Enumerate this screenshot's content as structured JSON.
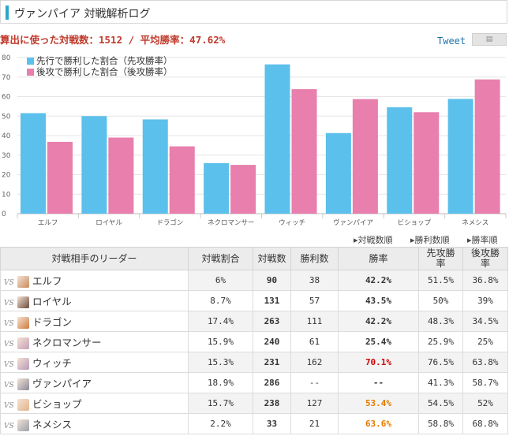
{
  "header": {
    "title": "ヴァンパイア 対戦解析ログ"
  },
  "stats": {
    "text": "算出に使った対戦数：1512 / 平均勝率：47.62%"
  },
  "tweet": {
    "label": "Tweet",
    "button_icon": "share-icon"
  },
  "chart_data": {
    "type": "bar",
    "categories": [
      "エルフ",
      "ロイヤル",
      "ドラゴン",
      "ネクロマンサー",
      "ウィッチ",
      "ヴァンパイア",
      "ビショップ",
      "ネメシス"
    ],
    "series": [
      {
        "name": "先行で勝利した割合（先攻勝率）",
        "color": "#5bc0eb",
        "values": [
          51.5,
          50,
          48.3,
          25.9,
          76.5,
          41.3,
          54.5,
          58.8
        ]
      },
      {
        "name": "後攻で勝利した割合（後攻勝率）",
        "color": "#e87fac",
        "values": [
          36.8,
          39,
          34.5,
          25,
          63.8,
          58.7,
          52,
          68.8
        ]
      }
    ],
    "yticks": [
      "80",
      "70",
      "60",
      "50",
      "40",
      "30",
      "20",
      "10",
      "0"
    ],
    "ylim": [
      0,
      80
    ],
    "grid": true,
    "legend_position": "top-left"
  },
  "sort_links": [
    "対戦数順",
    "勝利数順",
    "勝率順"
  ],
  "table": {
    "headers": [
      "対戦相手のリーダー",
      "対戦割合",
      "対戦数",
      "勝利数",
      "勝率",
      "先攻勝\n率",
      "後攻勝\n率"
    ],
    "vs_label": "VS",
    "rows": [
      {
        "leader": "エルフ",
        "ratio": "6%",
        "count": "90",
        "wins": "38",
        "rate": "42.2%",
        "first": "51.5%",
        "second": "36.8%",
        "rate_style": "normal",
        "avatar_color": "#c98a5a"
      },
      {
        "leader": "ロイヤル",
        "ratio": "8.7%",
        "count": "131",
        "wins": "57",
        "rate": "43.5%",
        "first": "50%",
        "second": "39%",
        "rate_style": "normal",
        "avatar_color": "#6b4a3a"
      },
      {
        "leader": "ドラゴン",
        "ratio": "17.4%",
        "count": "263",
        "wins": "111",
        "rate": "42.2%",
        "first": "48.3%",
        "second": "34.5%",
        "rate_style": "normal",
        "avatar_color": "#d07a3a"
      },
      {
        "leader": "ネクロマンサー",
        "ratio": "15.9%",
        "count": "240",
        "wins": "61",
        "rate": "25.4%",
        "first": "25.9%",
        "second": "25%",
        "rate_style": "normal",
        "avatar_color": "#c6a0b8"
      },
      {
        "leader": "ウィッチ",
        "ratio": "15.3%",
        "count": "231",
        "wins": "162",
        "rate": "70.1%",
        "first": "76.5%",
        "second": "63.8%",
        "rate_style": "red",
        "avatar_color": "#b89ab8"
      },
      {
        "leader": "ヴァンパイア",
        "ratio": "18.9%",
        "count": "286",
        "wins": "--",
        "rate": "--",
        "first": "41.3%",
        "second": "58.7%",
        "rate_style": "normal",
        "avatar_color": "#8a8a9a"
      },
      {
        "leader": "ビショップ",
        "ratio": "15.7%",
        "count": "238",
        "wins": "127",
        "rate": "53.4%",
        "first": "54.5%",
        "second": "52%",
        "rate_style": "orange",
        "avatar_color": "#e3b48a"
      },
      {
        "leader": "ネメシス",
        "ratio": "2.2%",
        "count": "33",
        "wins": "21",
        "rate": "63.6%",
        "first": "58.8%",
        "second": "68.8%",
        "rate_style": "orange",
        "avatar_color": "#9aa0aa"
      }
    ]
  }
}
